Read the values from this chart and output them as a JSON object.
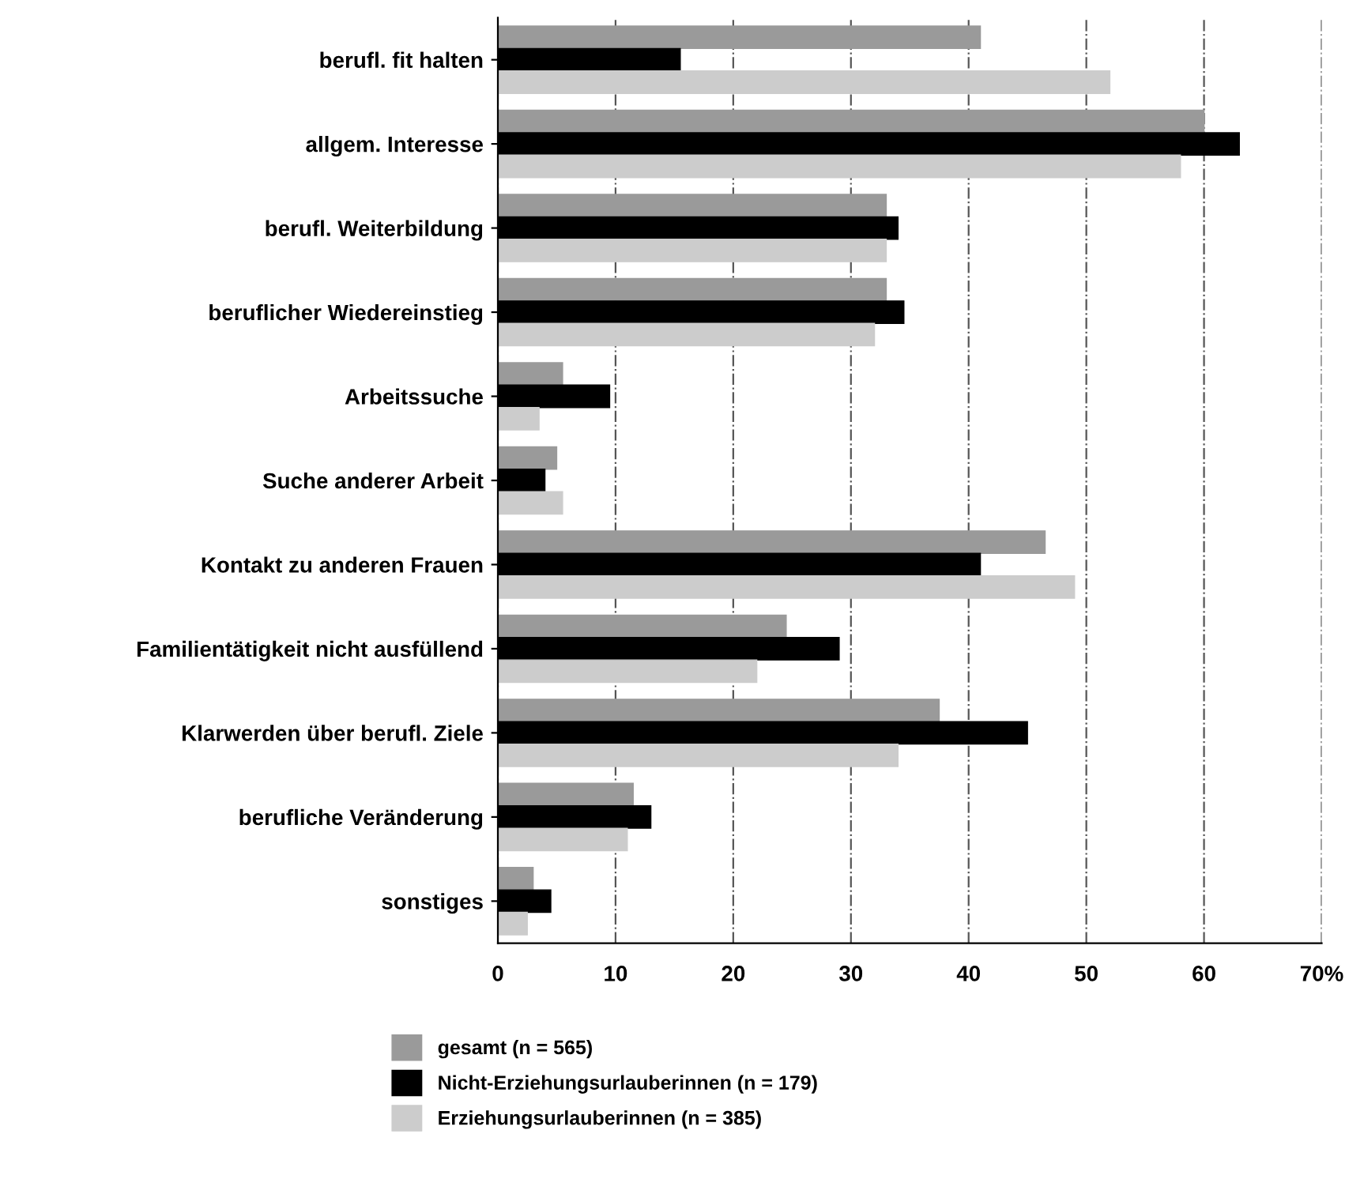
{
  "chart_data": {
    "type": "bar",
    "orientation": "horizontal",
    "categories": [
      "berufl. fit halten",
      "allgem. Interesse",
      "berufl. Weiterbildung",
      "beruflicher Wiedereinstieg",
      "Arbeitssuche",
      "Suche anderer Arbeit",
      "Kontakt zu anderen Frauen",
      "Familientätigkeit nicht ausfüllend",
      "Klarwerden über berufl. Ziele",
      "berufliche Veränderung",
      "sonstiges"
    ],
    "series": [
      {
        "name": "gesamt (n = 565)",
        "color": "#9a9a9a",
        "values": [
          41,
          60,
          33,
          33,
          5.5,
          5,
          46.5,
          24.5,
          37.5,
          11.5,
          3
        ]
      },
      {
        "name": "Nicht-Erziehungsurlauberinnen (n = 179)",
        "color": "#000000",
        "values": [
          15.5,
          63,
          34,
          34.5,
          9.5,
          4,
          41,
          29,
          45,
          13,
          4.5
        ]
      },
      {
        "name": "Erziehungsurlauberinnen (n = 385)",
        "color": "#cccccc",
        "values": [
          52,
          58,
          33,
          32,
          3.5,
          5.5,
          49,
          22,
          34,
          11,
          2.5
        ]
      }
    ],
    "xlim": [
      0,
      70
    ],
    "xticks": [
      0,
      10,
      20,
      30,
      40,
      50,
      60,
      {
        "value": 70,
        "label": "70%"
      }
    ],
    "grid": "x",
    "legend": "bottom"
  }
}
